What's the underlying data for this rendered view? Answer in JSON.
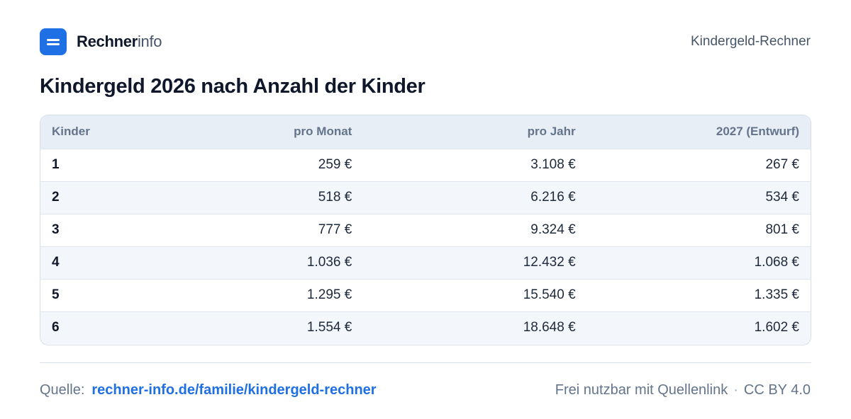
{
  "brand": {
    "name_strong": "Rechner",
    "name_light": "info",
    "icon": "menu-bars-icon",
    "accent_color": "#1f6fe5"
  },
  "header": {
    "page_label": "Kindergeld-Rechner"
  },
  "title": "Kindergeld 2026 nach Anzahl der Kinder",
  "table": {
    "columns": [
      "Kinder",
      "pro Monat",
      "pro Jahr",
      "2027 (Entwurf)"
    ],
    "rows": [
      [
        "1",
        "259 €",
        "3.108 €",
        "267 €"
      ],
      [
        "2",
        "518 €",
        "6.216 €",
        "534 €"
      ],
      [
        "3",
        "777 €",
        "9.324 €",
        "801 €"
      ],
      [
        "4",
        "1.036 €",
        "12.432 €",
        "1.068 €"
      ],
      [
        "5",
        "1.295 €",
        "15.540 €",
        "1.335 €"
      ],
      [
        "6",
        "1.554 €",
        "18.648 €",
        "1.602 €"
      ]
    ]
  },
  "footer": {
    "source_label": "Quelle:",
    "source_link": "rechner-info.de/familie/kindergeld-rechner",
    "usage": "Frei nutzbar mit Quellenlink",
    "separator": "·",
    "license": "CC BY 4.0"
  }
}
